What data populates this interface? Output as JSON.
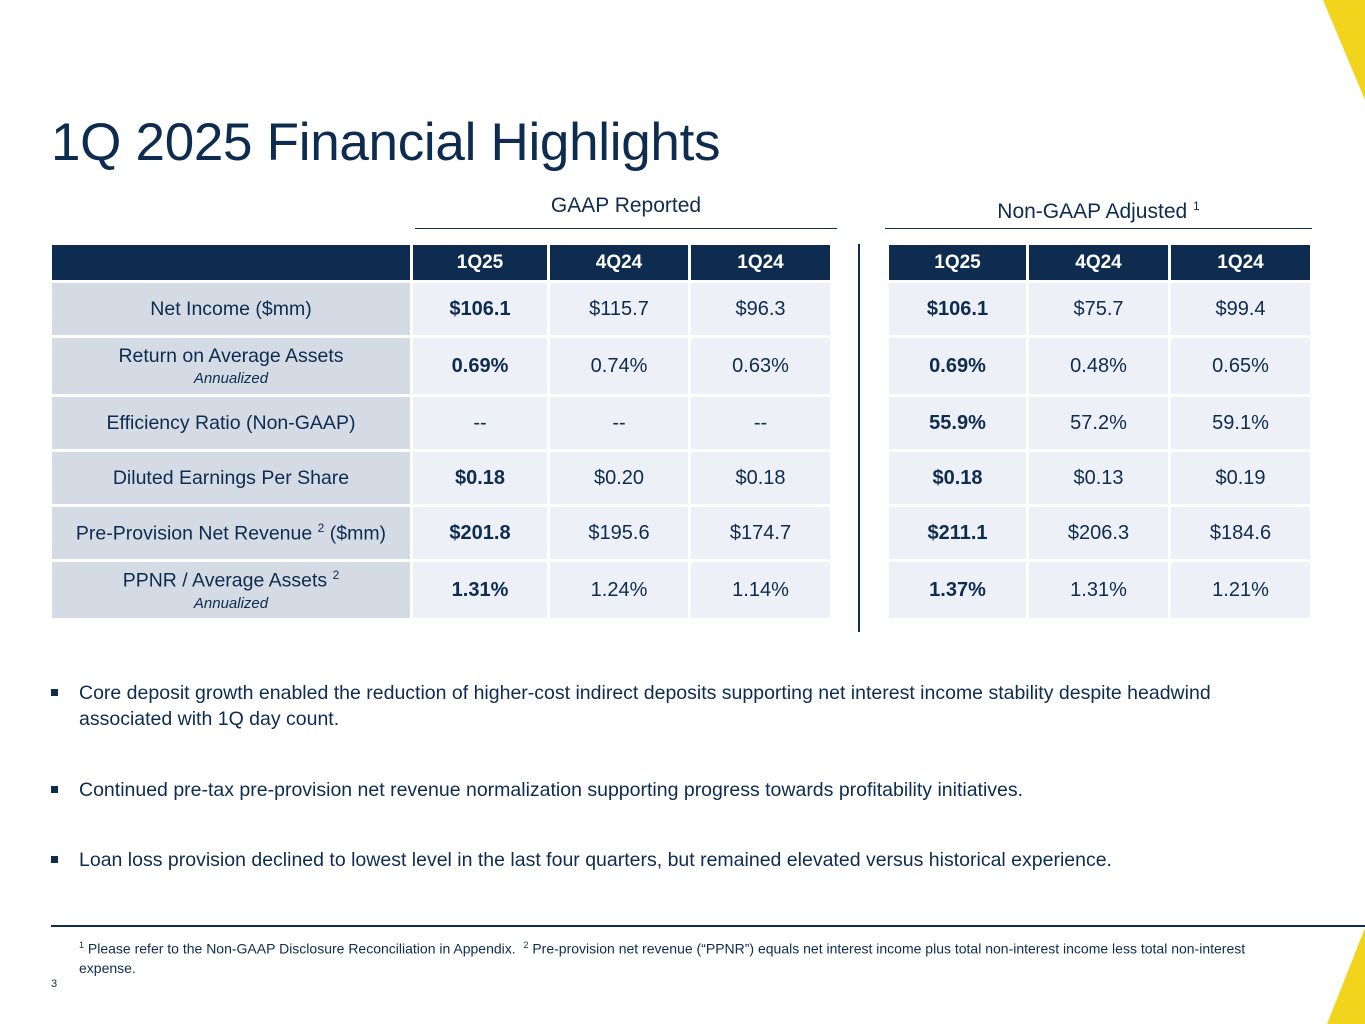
{
  "title": "1Q 2025 Financial Highlights",
  "groups": {
    "gaap": "GAAP Reported",
    "nongaap": "Non-GAAP Adjusted",
    "nongaap_note": "1"
  },
  "columns": [
    "1Q25",
    "4Q24",
    "1Q24"
  ],
  "rows": [
    {
      "label": "Net Income ($mm)",
      "sub": "",
      "sup": "",
      "suffix": "",
      "gaap": [
        "$106.1",
        "$115.7",
        "$96.3"
      ],
      "nongaap": [
        "$106.1",
        "$75.7",
        "$99.4"
      ]
    },
    {
      "label": "Return on Average Assets",
      "sub": "Annualized",
      "sup": "",
      "suffix": "",
      "gaap": [
        "0.69%",
        "0.74%",
        "0.63%"
      ],
      "nongaap": [
        "0.69%",
        "0.48%",
        "0.65%"
      ]
    },
    {
      "label": "Efficiency Ratio (Non-GAAP)",
      "sub": "",
      "sup": "",
      "suffix": "",
      "gaap": [
        "--",
        "--",
        "--"
      ],
      "nongaap": [
        "55.9%",
        "57.2%",
        "59.1%"
      ]
    },
    {
      "label": "Diluted Earnings Per Share",
      "sub": "",
      "sup": "",
      "suffix": "",
      "gaap": [
        "$0.18",
        "$0.20",
        "$0.18"
      ],
      "nongaap": [
        "$0.18",
        "$0.13",
        "$0.19"
      ]
    },
    {
      "label": "Pre-Provision Net Revenue",
      "sub": "",
      "sup": "2",
      "suffix": " ($mm)",
      "gaap": [
        "$201.8",
        "$195.6",
        "$174.7"
      ],
      "nongaap": [
        "$211.1",
        "$206.3",
        "$184.6"
      ]
    },
    {
      "label": "PPNR / Average Assets",
      "sub": "Annualized",
      "sup": "2",
      "suffix": "",
      "gaap": [
        "1.31%",
        "1.24%",
        "1.14%"
      ],
      "nongaap": [
        "1.37%",
        "1.31%",
        "1.21%"
      ]
    }
  ],
  "bullets": [
    "Core deposit growth enabled the reduction of higher-cost indirect deposits supporting net interest income stability despite headwind associated with 1Q day count.",
    "Continued pre-tax pre-provision net revenue normalization supporting progress towards profitability initiatives.",
    "Loan loss provision declined to lowest level in the last four quarters, but remained elevated versus historical experience."
  ],
  "footnotes": {
    "n1": "1",
    "t1": "Please refer to the Non-GAAP Disclosure Reconciliation in Appendix.",
    "n2": "2",
    "t2": "Pre-provision net revenue (“PPNR”) equals net interest income plus total non-interest income less total non-interest expense."
  },
  "page_number": "3",
  "colors": {
    "navy": "#0d2c4f",
    "label_bg": "#d5dbe4",
    "value_bg": "#edf0f6",
    "accent": "#f3d41c"
  }
}
